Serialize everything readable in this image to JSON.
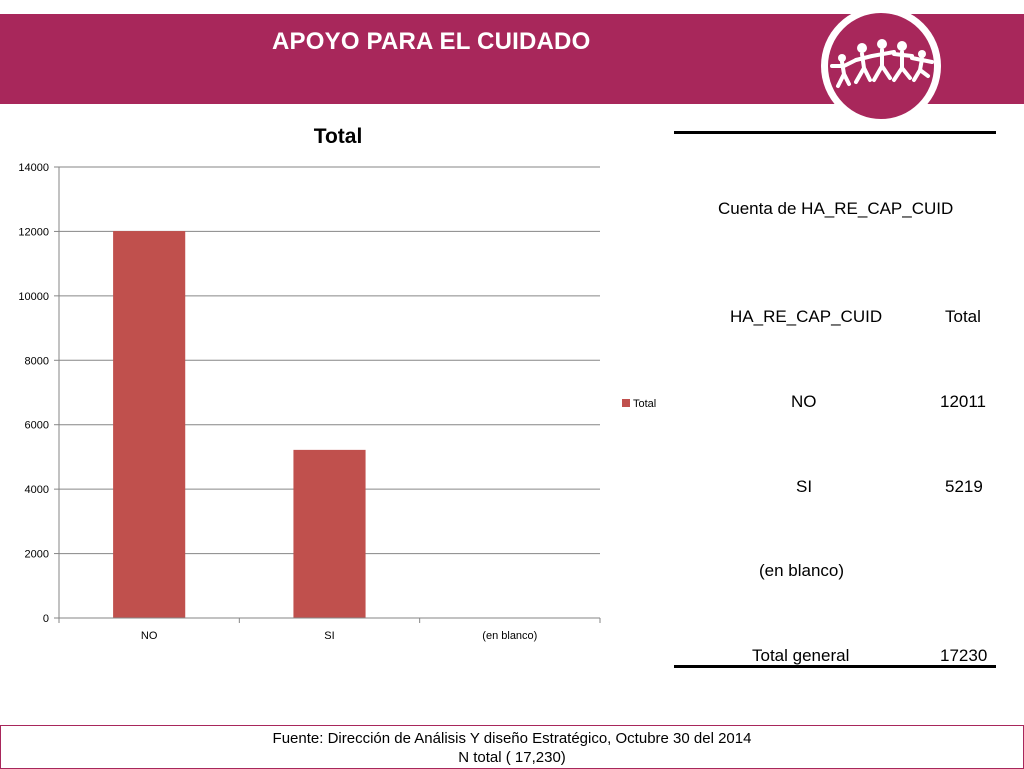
{
  "header": {
    "title": "APOYO PARA EL CUIDADO",
    "band_color": "#a8275b",
    "logo": {
      "icon": "people-holding-hands-logo"
    }
  },
  "chart_data": {
    "type": "bar",
    "title": "Total",
    "categories": [
      "NO",
      "SI",
      "(en blanco)"
    ],
    "series": [
      {
        "name": "Total",
        "values": [
          12011,
          5219,
          null
        ],
        "color": "#c0504d"
      }
    ],
    "y_ticks": [
      "0",
      "2000",
      "4000",
      "6000",
      "8000",
      "10000",
      "12000",
      "14000"
    ],
    "ylim": [
      0,
      14000
    ],
    "grid": true,
    "legend": "right"
  },
  "table": {
    "caption": "Cuenta de HA_RE_CAP_CUID",
    "headers": [
      "HA_RE_CAP_CUID",
      "Total"
    ],
    "rows": [
      {
        "label": "NO",
        "value": "12011"
      },
      {
        "label": "SI",
        "value": "5219"
      },
      {
        "label": "(en blanco)",
        "value": ""
      }
    ],
    "total": {
      "label": "Total general",
      "value": "17230"
    }
  },
  "footer": {
    "source": "Fuente: Dirección de Análisis Y diseño Estratégico, Octubre 30 del 2014",
    "n_total": "N total ( 17,230)"
  }
}
